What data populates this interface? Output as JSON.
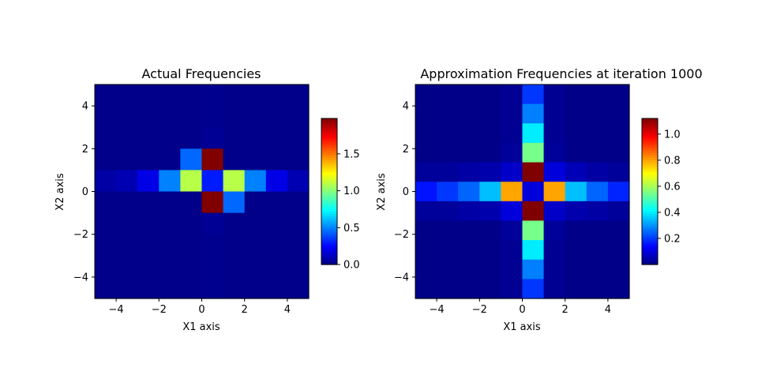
{
  "chart_data": [
    {
      "type": "heatmap",
      "title": "Actual Frequencies",
      "xlabel": "X1 axis",
      "ylabel": "X2 axis",
      "xlim": [
        -5,
        5
      ],
      "ylim": [
        -5,
        5
      ],
      "x_ticks": [
        -4,
        -2,
        0,
        2,
        4
      ],
      "y_ticks": [
        -4,
        -2,
        0,
        2,
        4
      ],
      "x_tick_labels": [
        "−4",
        "−2",
        "0",
        "2",
        "4"
      ],
      "y_tick_labels": [
        "−4",
        "−2",
        "0",
        "2",
        "4"
      ],
      "colormap": "jet",
      "vmin": 0,
      "vmax": 1.98,
      "colorbar_ticks": [
        0.0,
        0.5,
        1.0,
        1.5
      ],
      "colorbar_tick_labels": [
        "0.0",
        "0.5",
        "1.0",
        "1.5"
      ],
      "row_labels_note": "rows ordered top (y=4.44) to bottom (y=-4.44); columns left (x=-4.44) to right (x=4.44)",
      "grid": [
        [
          0.02,
          0.02,
          0.02,
          0.02,
          0.02,
          0.03,
          0.02,
          0.02,
          0.02,
          0.02
        ],
        [
          0.02,
          0.02,
          0.02,
          0.02,
          0.02,
          0.03,
          0.02,
          0.02,
          0.02,
          0.02
        ],
        [
          0.02,
          0.02,
          0.02,
          0.02,
          0.02,
          0.04,
          0.02,
          0.02,
          0.02,
          0.02
        ],
        [
          0.02,
          0.02,
          0.02,
          0.02,
          0.45,
          1.98,
          0.02,
          0.02,
          0.02,
          0.02
        ],
        [
          0.07,
          0.1,
          0.2,
          0.5,
          1.1,
          0.3,
          1.1,
          0.5,
          0.2,
          0.1
        ],
        [
          0.02,
          0.02,
          0.02,
          0.02,
          0.02,
          1.98,
          0.45,
          0.02,
          0.02,
          0.02
        ],
        [
          0.02,
          0.02,
          0.02,
          0.02,
          0.02,
          0.04,
          0.02,
          0.02,
          0.02,
          0.02
        ],
        [
          0.02,
          0.02,
          0.02,
          0.02,
          0.02,
          0.03,
          0.02,
          0.02,
          0.02,
          0.02
        ],
        [
          0.02,
          0.02,
          0.02,
          0.02,
          0.02,
          0.03,
          0.02,
          0.02,
          0.02,
          0.02
        ],
        [
          0.02,
          0.02,
          0.02,
          0.02,
          0.02,
          0.03,
          0.02,
          0.02,
          0.02,
          0.02
        ]
      ]
    },
    {
      "type": "heatmap",
      "title": "Approximation Frequencies at iteration 1000",
      "xlabel": "X1 axis",
      "ylabel": "X2 axis",
      "xlim": [
        -5,
        5
      ],
      "ylim": [
        -5,
        5
      ],
      "x_ticks": [
        -4,
        -2,
        0,
        2,
        4
      ],
      "y_ticks": [
        -4,
        -2,
        0,
        2,
        4
      ],
      "x_tick_labels": [
        "−4",
        "−2",
        "0",
        "2",
        "4"
      ],
      "y_tick_labels": [
        "−4",
        "−2",
        "0",
        "2",
        "4"
      ],
      "colormap": "jet",
      "vmin": 0.0,
      "vmax": 1.12,
      "colorbar_ticks": [
        0.2,
        0.4,
        0.6,
        0.8,
        1.0
      ],
      "colorbar_tick_labels": [
        "0.2",
        "0.4",
        "0.6",
        "0.8",
        "1.0"
      ],
      "grid": [
        [
          0.01,
          0.01,
          0.01,
          0.01,
          0.02,
          0.2,
          0.02,
          0.01,
          0.01,
          0.01
        ],
        [
          0.01,
          0.01,
          0.01,
          0.01,
          0.02,
          0.28,
          0.02,
          0.01,
          0.01,
          0.01
        ],
        [
          0.01,
          0.01,
          0.01,
          0.01,
          0.02,
          0.4,
          0.02,
          0.01,
          0.01,
          0.01
        ],
        [
          0.01,
          0.01,
          0.01,
          0.01,
          0.03,
          0.55,
          0.03,
          0.01,
          0.01,
          0.01
        ],
        [
          0.03,
          0.03,
          0.04,
          0.05,
          0.08,
          1.12,
          0.1,
          0.06,
          0.04,
          0.03
        ],
        [
          0.16,
          0.2,
          0.25,
          0.35,
          0.8,
          0.1,
          0.8,
          0.35,
          0.25,
          0.18
        ],
        [
          0.03,
          0.03,
          0.04,
          0.05,
          0.1,
          1.12,
          0.08,
          0.05,
          0.04,
          0.03
        ],
        [
          0.01,
          0.01,
          0.01,
          0.01,
          0.03,
          0.55,
          0.03,
          0.01,
          0.01,
          0.01
        ],
        [
          0.01,
          0.01,
          0.01,
          0.01,
          0.02,
          0.4,
          0.02,
          0.01,
          0.01,
          0.01
        ],
        [
          0.01,
          0.01,
          0.01,
          0.01,
          0.02,
          0.28,
          0.02,
          0.01,
          0.01,
          0.01
        ],
        [
          0.01,
          0.01,
          0.01,
          0.01,
          0.02,
          0.2,
          0.02,
          0.01,
          0.01,
          0.01
        ]
      ]
    }
  ]
}
